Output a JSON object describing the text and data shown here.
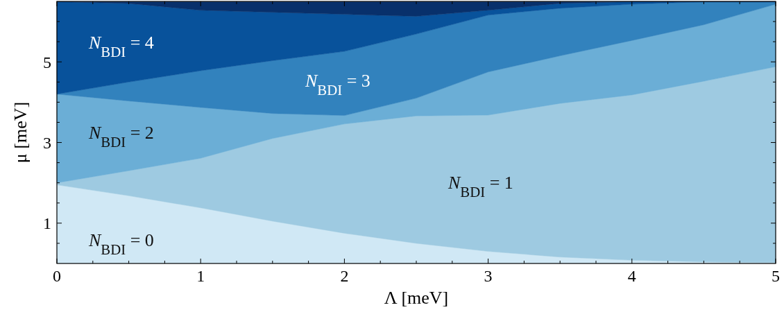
{
  "chart_data": {
    "type": "area",
    "stacked": true,
    "xlabel": "Λ [meV]",
    "ylabel": "μ [meV]",
    "x": [
      0,
      0.5,
      1,
      1.5,
      2,
      2.5,
      3,
      3.5,
      4,
      4.5,
      5
    ],
    "xlim": [
      0,
      5
    ],
    "ylim": [
      0,
      6.5
    ],
    "xticks": [
      0,
      {
        "value": 0.25,
        "label": null
      },
      {
        "value": 0.5,
        "label": null
      },
      {
        "value": 0.75,
        "label": null
      },
      1,
      {
        "value": 1.25,
        "label": null
      },
      {
        "value": 1.5,
        "label": null
      },
      {
        "value": 1.75,
        "label": null
      },
      2,
      {
        "value": 2.25,
        "label": null
      },
      {
        "value": 2.5,
        "label": null
      },
      {
        "value": 2.75,
        "label": null
      },
      3,
      {
        "value": 3.25,
        "label": null
      },
      {
        "value": 3.5,
        "label": null
      },
      {
        "value": 3.75,
        "label": null
      },
      4,
      {
        "value": 4.25,
        "label": null
      },
      {
        "value": 4.5,
        "label": null
      },
      {
        "value": 4.75,
        "label": null
      },
      5
    ],
    "yticks": [
      {
        "value": 0.5,
        "label": null
      },
      1,
      {
        "value": 1.5,
        "label": null
      },
      {
        "value": 2,
        "label": null
      },
      {
        "value": 2.5,
        "label": null
      },
      3,
      {
        "value": 3.5,
        "label": null
      },
      {
        "value": 4,
        "label": null
      },
      {
        "value": 4.5,
        "label": null
      },
      5,
      {
        "value": 5.5,
        "label": null
      },
      {
        "value": 6,
        "label": null
      }
    ],
    "grid": false,
    "series": [
      {
        "color": "#d0e8f5",
        "values": [
          1.95,
          1.68,
          1.38,
          1.05,
          0.75,
          0.5,
          0.3,
          0.16,
          0.08,
          0.04,
          0.02
        ]
      },
      {
        "color": "#9ecae1",
        "values": [
          0.05,
          0.62,
          1.23,
          2.05,
          2.71,
          3.16,
          3.38,
          3.81,
          4.1,
          4.48,
          4.86
        ]
      },
      {
        "color": "#6baed6",
        "values": [
          2.2,
          1.73,
          1.26,
          0.62,
          0.21,
          0.44,
          1.07,
          1.18,
          1.35,
          1.4,
          1.55
        ]
      },
      {
        "color": "#3282bd",
        "values": [
          0,
          0.47,
          0.91,
          1.31,
          1.59,
          1.59,
          1.41,
          1.18,
          0.9,
          0.57,
          0.06
        ]
      },
      {
        "color": "#08529b",
        "values": [
          2.29,
          1.95,
          1.5,
          1.2,
          0.92,
          0.44,
          0.12,
          0.12,
          0.06,
          0,
          0
        ]
      },
      {
        "color": "#08306b",
        "values": [
          0,
          0.04,
          0.21,
          0.26,
          0.31,
          0.36,
          0.21,
          0.04,
          0,
          0,
          0
        ]
      }
    ],
    "annotations": [
      "N$_{BDI}$ = 0",
      "N$_{BDI}$ = 1",
      "N$_{BDI}$ = 2",
      "N$_{BDI}$ = 3",
      "N$_{BDI}$ = 4"
    ]
  }
}
